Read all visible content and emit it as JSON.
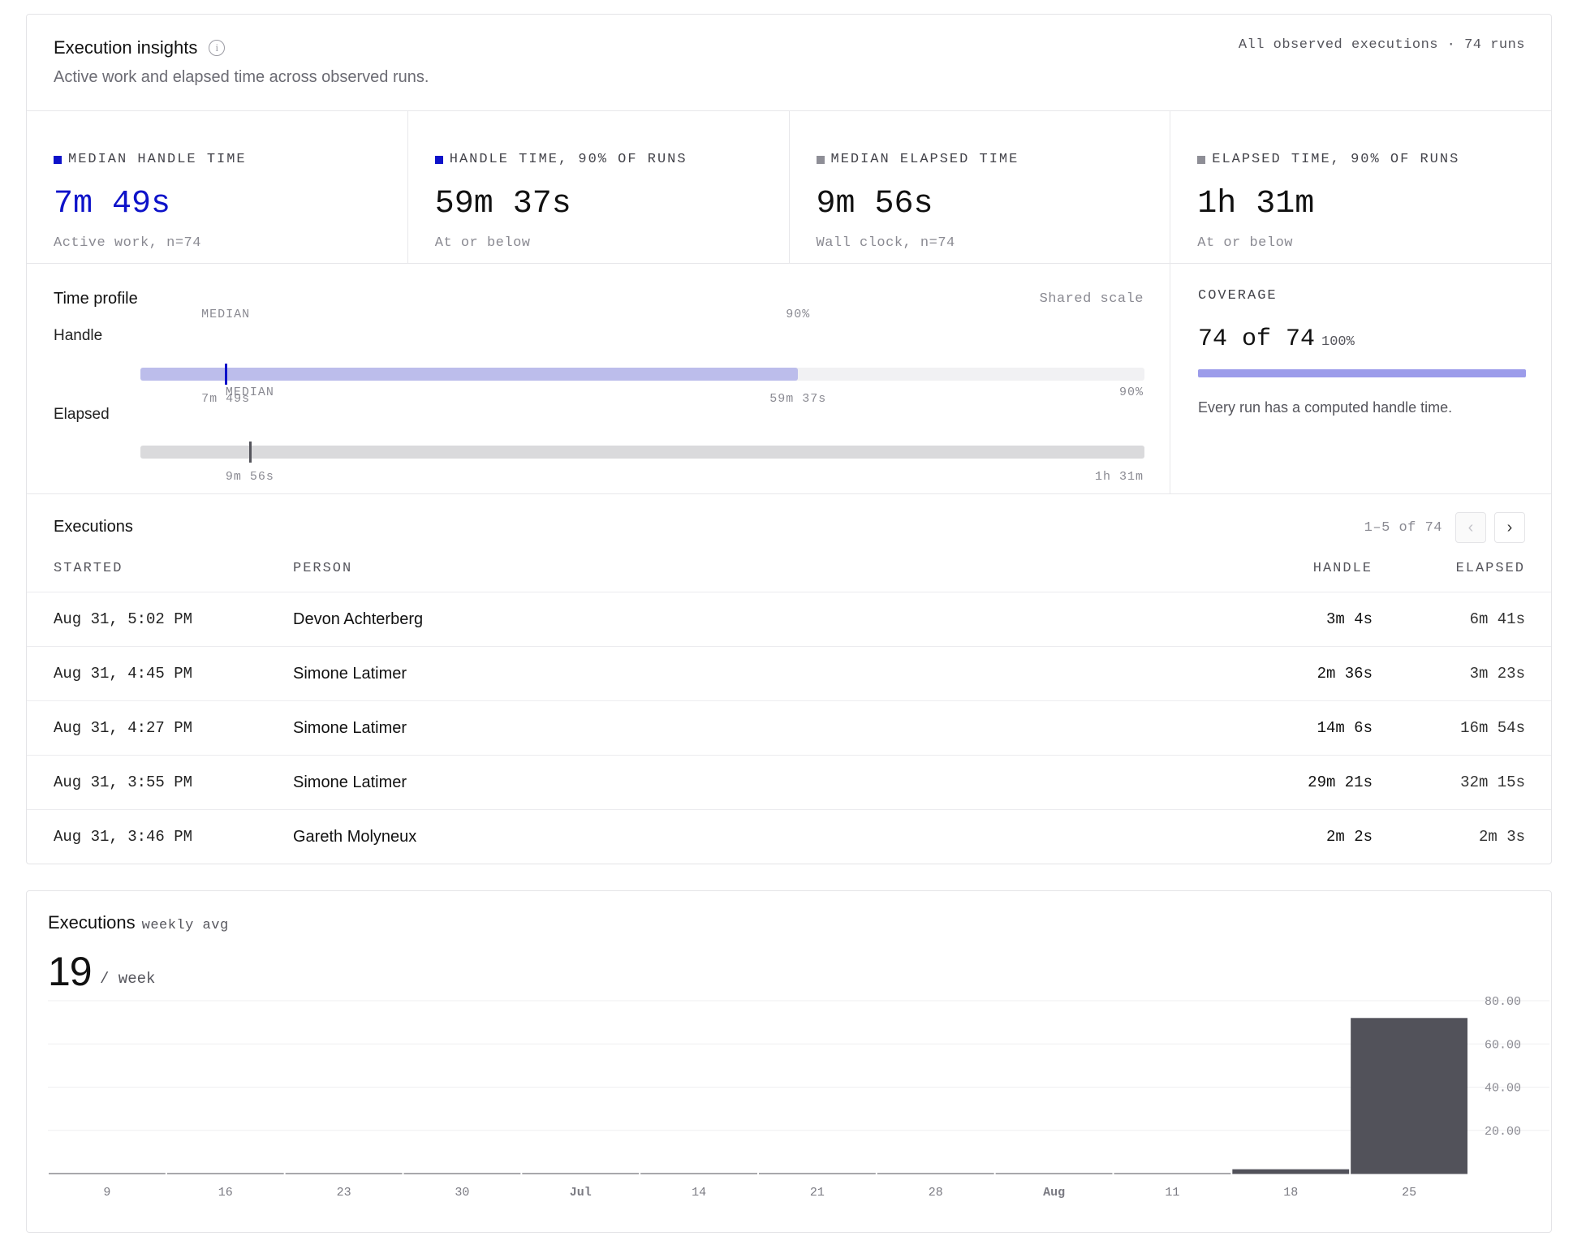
{
  "header": {
    "title": "Execution insights",
    "subtitle": "Active work and elapsed time across observed runs.",
    "scope": "All observed executions · 74 runs"
  },
  "colors": {
    "handle_accent": "#0d12c9",
    "handle_light": "#bcbdeb",
    "elapsed_marker": "#55555c",
    "elapsed_track": "#dadadc",
    "bar_dark": "#52525a"
  },
  "stats": [
    {
      "label": "MEDIAN HANDLE TIME",
      "value": "7m 49s",
      "note": "Active work, n=74",
      "swatch": "#0d12c9",
      "value_color": "#0d12c9"
    },
    {
      "label": "HANDLE TIME, 90% OF RUNS",
      "value": "59m 37s",
      "note": "At or below",
      "swatch": "#0d12c9",
      "value_color": "#111111"
    },
    {
      "label": "MEDIAN ELAPSED TIME",
      "value": "9m 56s",
      "note": "Wall clock, n=74",
      "swatch": "#8e8e96",
      "value_color": "#111111"
    },
    {
      "label": "ELAPSED TIME, 90% OF RUNS",
      "value": "1h 31m",
      "note": "At or below",
      "swatch": "#8e8e96",
      "value_color": "#111111"
    }
  ],
  "profile": {
    "title": "Time profile",
    "scale_label": "Shared scale",
    "handle": {
      "label": "Handle",
      "median_tag": "MEDIAN",
      "p90_tag": "90%",
      "median_value": "7m 49s",
      "p90_value": "59m 37s",
      "median_fraction": 0.085,
      "p90_fraction": 0.655
    },
    "elapsed": {
      "label": "Elapsed",
      "median_tag": "MEDIAN",
      "p90_tag": "90%",
      "median_value": "9m 56s",
      "p90_value": "1h 31m",
      "median_fraction": 0.109,
      "p90_fraction": 1.0
    }
  },
  "coverage": {
    "label": "COVERAGE",
    "value": "74 of 74",
    "percent": "100%",
    "fraction": 1.0,
    "note": "Every run has a computed handle time."
  },
  "executions": {
    "title": "Executions",
    "pager_text": "1–5 of 74",
    "prev_icon": "‹",
    "next_icon": "›",
    "columns": {
      "started": "STARTED",
      "person": "PERSON",
      "handle": "HANDLE",
      "elapsed": "ELAPSED"
    },
    "rows": [
      {
        "started": "Aug 31, 5:02 PM",
        "person": "Devon Achterberg",
        "handle": "3m 4s",
        "elapsed": "6m 41s"
      },
      {
        "started": "Aug 31, 4:45 PM",
        "person": "Simone Latimer",
        "handle": "2m 36s",
        "elapsed": "3m 23s"
      },
      {
        "started": "Aug 31, 4:27 PM",
        "person": "Simone Latimer",
        "handle": "14m 6s",
        "elapsed": "16m 54s"
      },
      {
        "started": "Aug 31, 3:55 PM",
        "person": "Simone Latimer",
        "handle": "29m 21s",
        "elapsed": "32m 15s"
      },
      {
        "started": "Aug 31, 3:46 PM",
        "person": "Gareth Molyneux",
        "handle": "2m 2s",
        "elapsed": "2m 3s"
      }
    ]
  },
  "weekly": {
    "title": "Executions",
    "title_sub": "weekly avg",
    "value": "19",
    "unit": "/ week"
  },
  "chart_data": {
    "type": "bar",
    "categories": [
      "9",
      "16",
      "23",
      "30",
      "Jul",
      "14",
      "21",
      "28",
      "Aug",
      "11",
      "18",
      "25"
    ],
    "bold_categories": [
      "Jul",
      "Aug"
    ],
    "values": [
      0,
      0,
      0,
      0,
      0,
      0,
      0,
      0,
      0,
      0,
      2,
      72
    ],
    "ylim": [
      0,
      80
    ],
    "yticks": [
      20,
      40,
      60,
      80
    ],
    "ytick_labels": [
      "20.00",
      "40.00",
      "60.00",
      "80.00"
    ],
    "grid": true,
    "title": "",
    "xlabel": "",
    "ylabel": ""
  }
}
